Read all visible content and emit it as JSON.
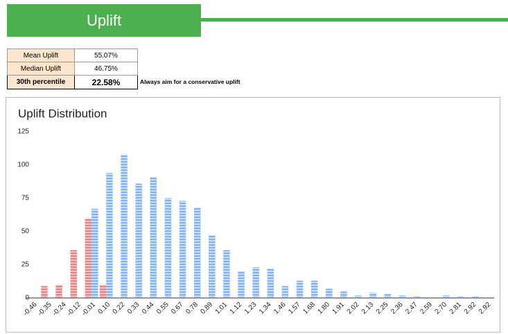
{
  "header": {
    "title": "Uplift"
  },
  "table": {
    "rows": [
      [
        "Mean Uplift",
        "55.07%"
      ],
      [
        "Median Uplift",
        "46.75%"
      ],
      [
        "30th percentile",
        "22.58%"
      ]
    ]
  },
  "note": "Always aim for a conservative uplift",
  "chart_data": {
    "type": "bar",
    "title": "Uplift Distribution",
    "categories": [
      "-0.46",
      "-0.35",
      "-0.24",
      "-0.12",
      "-0.01",
      "0.10",
      "0.22",
      "0.33",
      "0.44",
      "0.55",
      "0.67",
      "0.78",
      "0.89",
      "1.01",
      "1.12",
      "1.23",
      "1.34",
      "1.46",
      "1.57",
      "1.68",
      "1.80",
      "1.91",
      "2.02",
      "2.13",
      "2.25",
      "2.36",
      "2.47",
      "2.59",
      "2.70",
      "2.81",
      "2.92",
      "2.92"
    ],
    "series": [
      {
        "color": "#e06666",
        "values": [
          0,
          9,
          10,
          36,
          60,
          10,
          0,
          0,
          0,
          0,
          0,
          0,
          0,
          0,
          0,
          0,
          0,
          0,
          0,
          0,
          0,
          0,
          0,
          0,
          0,
          0,
          0,
          0,
          0,
          0,
          0,
          0
        ]
      },
      {
        "color": "#6d9eeb",
        "values": [
          0,
          0,
          0,
          0,
          67,
          94,
          108,
          86,
          91,
          75,
          73,
          68,
          47,
          36,
          20,
          23,
          22,
          9,
          13,
          13,
          7,
          5,
          2,
          4,
          3,
          2,
          1,
          0,
          2,
          1,
          1,
          0
        ]
      }
    ],
    "ylim": [
      0,
      125
    ],
    "yticks": [
      0,
      25,
      50,
      75,
      100,
      125
    ],
    "grid": false
  }
}
